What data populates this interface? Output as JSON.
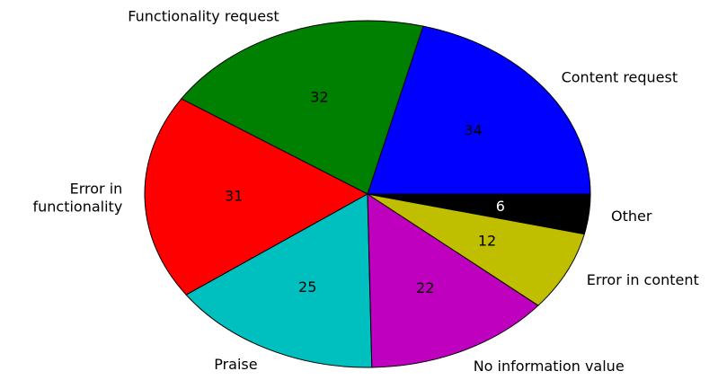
{
  "chart_data": {
    "type": "pie",
    "title": "",
    "start_angle_deg": 0,
    "direction": "counterclockwise",
    "slices": [
      {
        "label": "Content request",
        "value": 34,
        "value_label": "34",
        "color": "#0000ff",
        "value_label_color": "#000000"
      },
      {
        "label": "Functionality request",
        "value": 32,
        "value_label": "32",
        "color": "#008000",
        "value_label_color": "#000000"
      },
      {
        "label": "Error in\nfunctionality",
        "value": 31,
        "value_label": "31",
        "color": "#ff0000",
        "value_label_color": "#000000"
      },
      {
        "label": "Praise",
        "value": 25,
        "value_label": "25",
        "color": "#00bfbf",
        "value_label_color": "#000000"
      },
      {
        "label": "No information value",
        "value": 22,
        "value_label": "22",
        "color": "#bf00bf",
        "value_label_color": "#000000"
      },
      {
        "label": "Error in content",
        "value": 12,
        "value_label": "12",
        "color": "#bfbf00",
        "value_label_color": "#000000"
      },
      {
        "label": "Other",
        "value": 6,
        "value_label": "6",
        "color": "#000000",
        "value_label_color": "#ffffff"
      }
    ]
  }
}
